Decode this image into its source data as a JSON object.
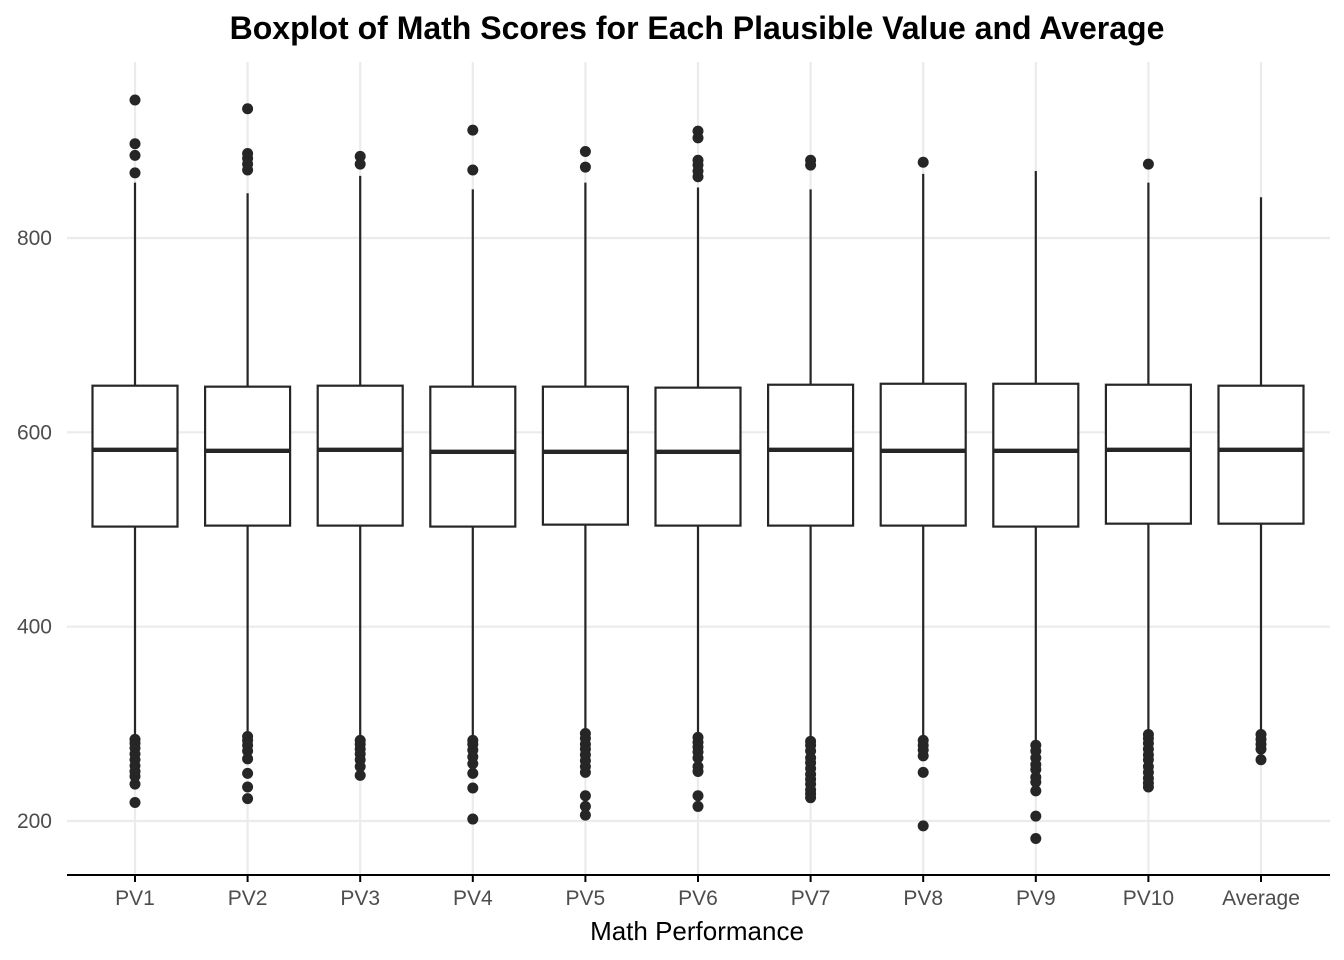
{
  "chart_data": {
    "type": "box",
    "title": "Boxplot of Math Scores for Each Plausible Value and Average",
    "xlabel": "Math Performance",
    "ylabel": "",
    "ylim": [
      145,
      990
    ],
    "yticks": [
      200,
      400,
      600,
      800
    ],
    "grid": true,
    "colors": {
      "box_stroke": "#262626",
      "grid": "#ebebeb",
      "background": "#ffffff"
    },
    "categories": [
      "PV1",
      "PV2",
      "PV3",
      "PV4",
      "PV5",
      "PV6",
      "PV7",
      "PV8",
      "PV9",
      "PV10",
      "Average"
    ],
    "series": [
      {
        "category": "PV1",
        "q1": 503,
        "median": 582,
        "q3": 648,
        "whisker_low": 288,
        "whisker_high": 857,
        "outliers": [
          942,
          897,
          885,
          867,
          284,
          280,
          275,
          269,
          263,
          257,
          251,
          246,
          238,
          219
        ]
      },
      {
        "category": "PV2",
        "q1": 504,
        "median": 581,
        "q3": 647,
        "whisker_low": 290,
        "whisker_high": 846,
        "outliers": [
          933,
          887,
          882,
          876,
          870,
          287,
          283,
          278,
          272,
          264,
          249,
          235,
          223
        ]
      },
      {
        "category": "PV3",
        "q1": 504,
        "median": 582,
        "q3": 648,
        "whisker_low": 287,
        "whisker_high": 864,
        "outliers": [
          884,
          876,
          283,
          279,
          274,
          269,
          263,
          256,
          247
        ]
      },
      {
        "category": "PV4",
        "q1": 503,
        "median": 580,
        "q3": 647,
        "whisker_low": 287,
        "whisker_high": 850,
        "outliers": [
          911,
          870,
          283,
          279,
          273,
          266,
          259,
          249,
          234,
          202
        ]
      },
      {
        "category": "PV5",
        "q1": 505,
        "median": 580,
        "q3": 647,
        "whisker_low": 295,
        "whisker_high": 857,
        "outliers": [
          889,
          873,
          290,
          285,
          279,
          274,
          268,
          262,
          256,
          250,
          226,
          215,
          206
        ]
      },
      {
        "category": "PV6",
        "q1": 504,
        "median": 580,
        "q3": 646,
        "whisker_low": 290,
        "whisker_high": 852,
        "outliers": [
          910,
          903,
          880,
          875,
          869,
          863,
          286,
          281,
          276,
          271,
          265,
          256,
          251,
          226,
          215
        ]
      },
      {
        "category": "PV7",
        "q1": 504,
        "median": 582,
        "q3": 649,
        "whisker_low": 286,
        "whisker_high": 850,
        "outliers": [
          880,
          875,
          282,
          278,
          272,
          265,
          260,
          254,
          248,
          243,
          238,
          232,
          228,
          224
        ]
      },
      {
        "category": "PV8",
        "q1": 504,
        "median": 581,
        "q3": 650,
        "whisker_low": 286,
        "whisker_high": 866,
        "outliers": [
          878,
          283,
          278,
          273,
          267,
          250,
          195
        ]
      },
      {
        "category": "PV9",
        "q1": 503,
        "median": 581,
        "q3": 650,
        "whisker_low": 281,
        "whisker_high": 869,
        "outliers": [
          278,
          272,
          265,
          258,
          253,
          245,
          240,
          231,
          205,
          182
        ]
      },
      {
        "category": "PV10",
        "q1": 506,
        "median": 582,
        "q3": 649,
        "whisker_low": 292,
        "whisker_high": 857,
        "outliers": [
          876,
          289,
          285,
          280,
          274,
          268,
          263,
          256,
          250,
          244,
          239,
          235
        ]
      },
      {
        "category": "Average",
        "q1": 506,
        "median": 582,
        "q3": 648,
        "whisker_low": 292,
        "whisker_high": 842,
        "outliers": [
          289,
          284,
          279,
          274,
          263
        ]
      }
    ]
  }
}
